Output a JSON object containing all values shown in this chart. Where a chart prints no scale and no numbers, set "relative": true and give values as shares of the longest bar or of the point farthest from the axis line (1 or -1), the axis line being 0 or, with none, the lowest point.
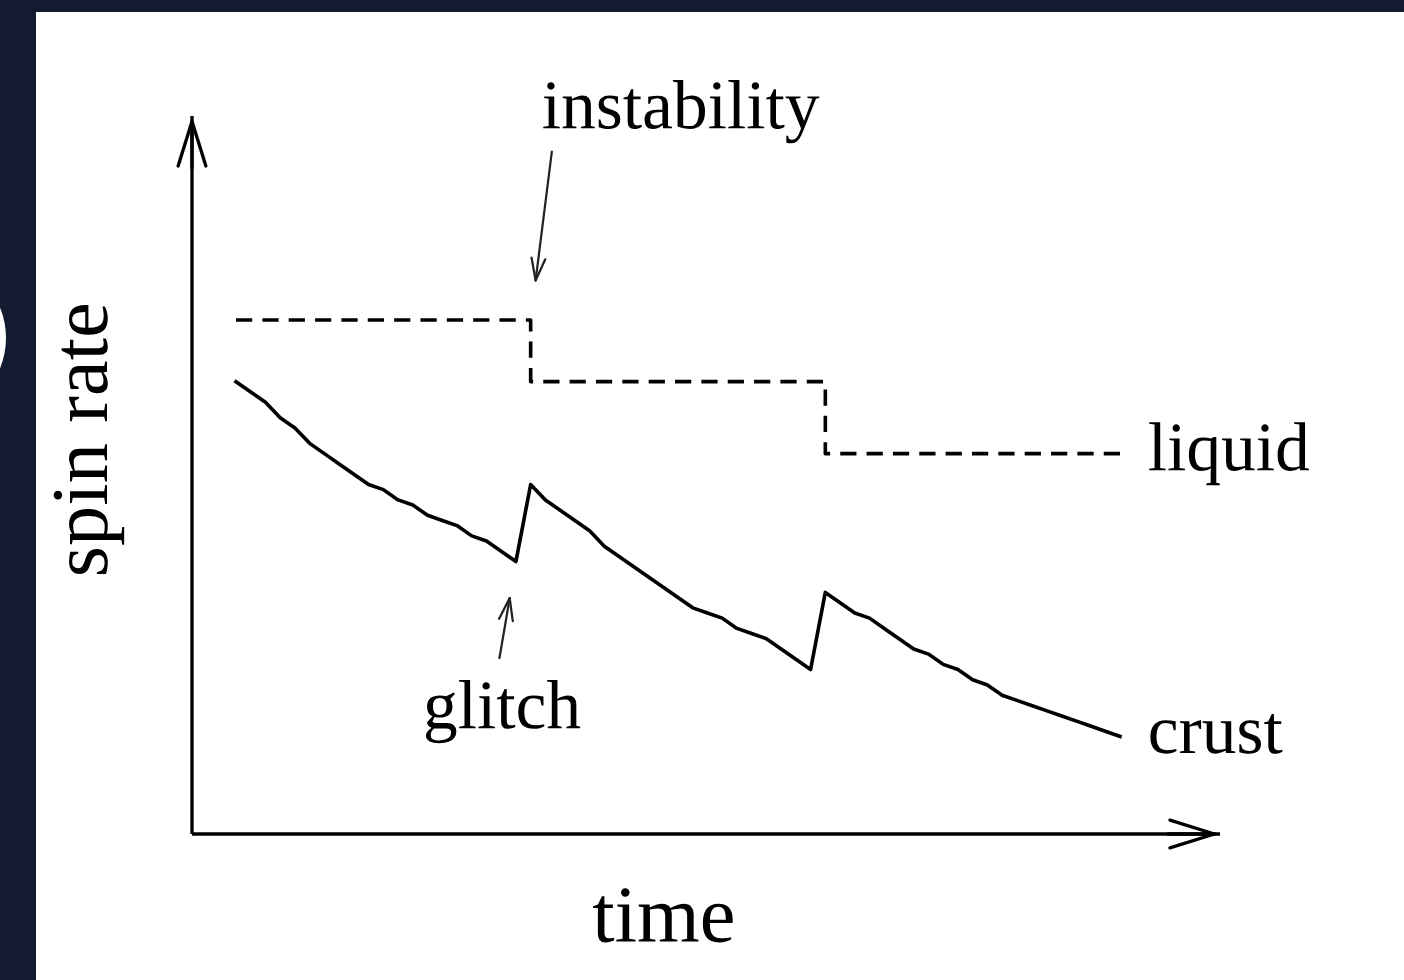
{
  "chart_data": {
    "type": "line",
    "relative": true,
    "xlabel": "time",
    "ylabel": "spin rate",
    "tick_labels": false,
    "categories": [
      null,
      null,
      null,
      null,
      null,
      null,
      null,
      null,
      null,
      null,
      null,
      null,
      null,
      null,
      null,
      null,
      null,
      null,
      null,
      null,
      null,
      null,
      null,
      null,
      null,
      null,
      null,
      null,
      null,
      null,
      null,
      null,
      null,
      null,
      null,
      null,
      null,
      null,
      null,
      null,
      null,
      null,
      null,
      null,
      null,
      null,
      null,
      null,
      null,
      null,
      null,
      null,
      null,
      null,
      null,
      null,
      null,
      null,
      null,
      null,
      null
    ],
    "series": [
      {
        "name": "liquid",
        "type": "step",
        "line_style": "dashed",
        "color": "#000000",
        "values": [
          1,
          1,
          1,
          1,
          1,
          1,
          1,
          1,
          1,
          1,
          1,
          1,
          1,
          1,
          1,
          1,
          1,
          1,
          1,
          1,
          0.88,
          0.88,
          0.88,
          0.88,
          0.88,
          0.88,
          0.88,
          0.88,
          0.88,
          0.88,
          0.88,
          0.88,
          0.88,
          0.88,
          0.88,
          0.88,
          0.88,
          0.88,
          0.88,
          0.88,
          0.74,
          0.74,
          0.74,
          0.74,
          0.74,
          0.74,
          0.74,
          0.74,
          0.74,
          0.74,
          0.74,
          0.74,
          0.74,
          0.74,
          0.74,
          0.74,
          0.74,
          0.74,
          0.74,
          0.74,
          0.74
        ]
      },
      {
        "name": "crust",
        "line_style": "solid",
        "color": "#000000",
        "values": [
          0.88,
          0.86,
          0.84,
          0.81,
          0.79,
          0.76,
          0.74,
          0.72,
          0.7,
          0.68,
          0.67,
          0.65,
          0.64,
          0.62,
          0.61,
          0.6,
          0.58,
          0.57,
          0.55,
          0.53,
          0.68,
          0.65,
          0.63,
          0.61,
          0.59,
          0.56,
          0.54,
          0.52,
          0.5,
          0.48,
          0.46,
          0.44,
          0.43,
          0.42,
          0.4,
          0.39,
          0.38,
          0.36,
          0.34,
          0.32,
          0.47,
          0.45,
          0.43,
          0.42,
          0.4,
          0.38,
          0.36,
          0.35,
          0.33,
          0.32,
          0.3,
          0.29,
          0.27,
          0.26,
          0.25,
          0.24,
          0.23,
          0.22,
          0.21,
          0.2,
          0.19
        ]
      }
    ],
    "annotations": [
      "instability",
      "glitch"
    ]
  }
}
